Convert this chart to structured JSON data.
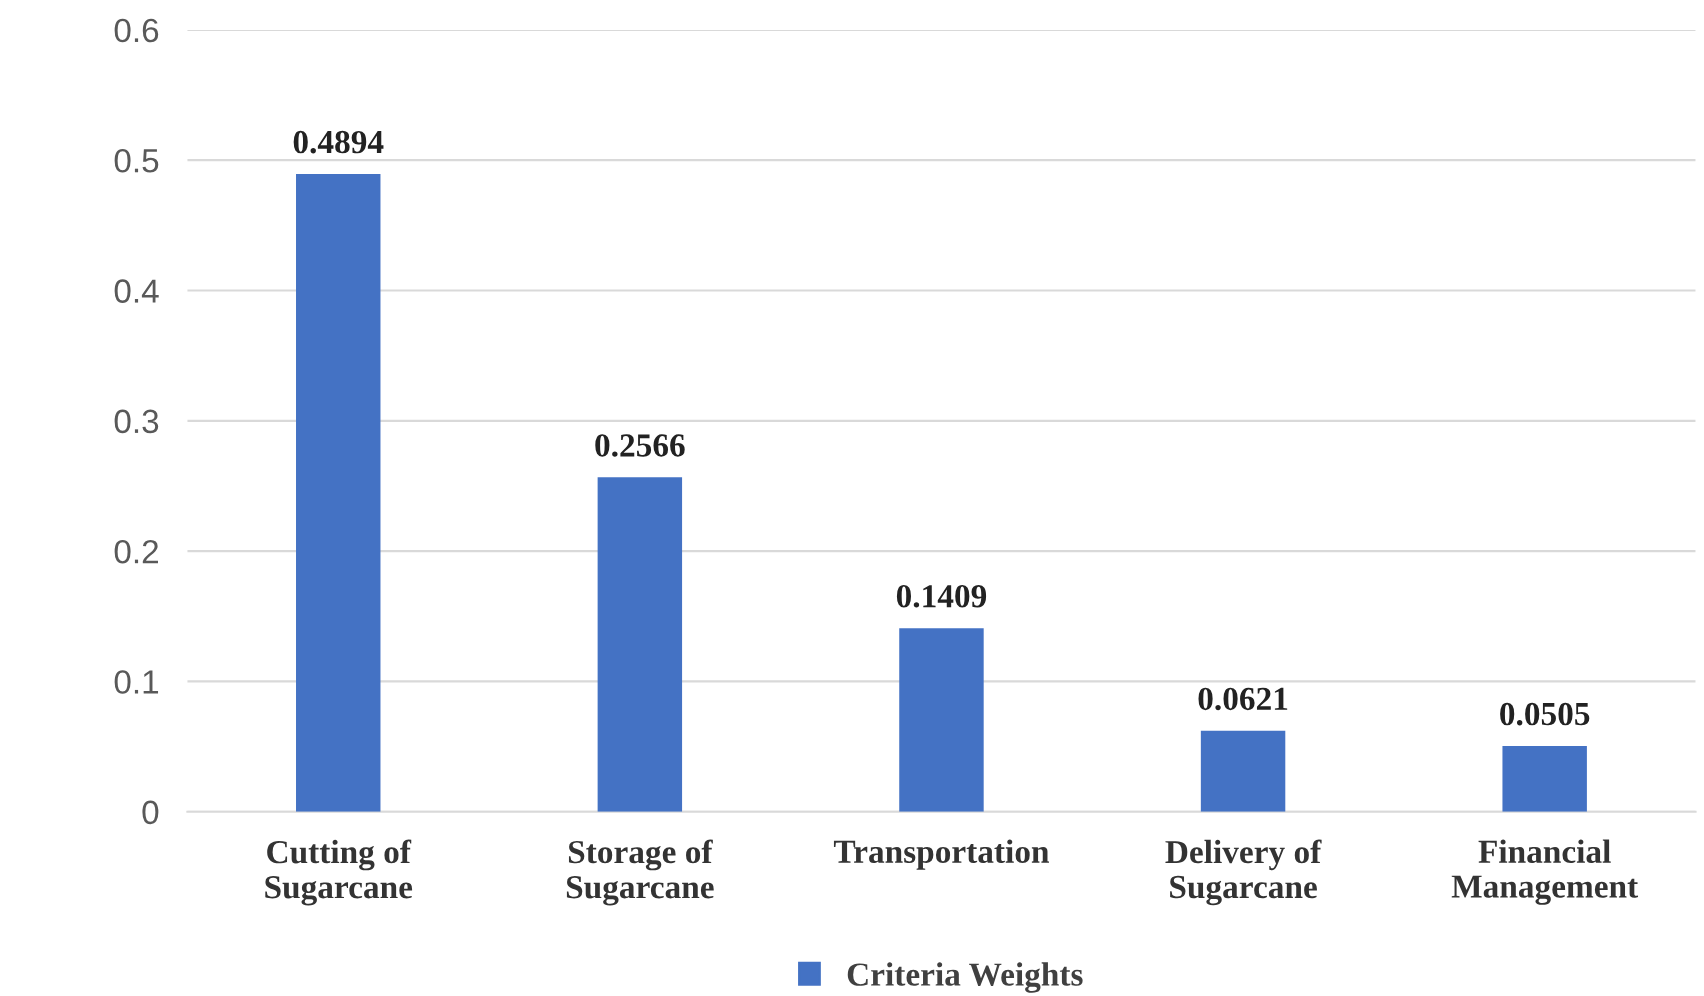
{
  "chart_data": {
    "type": "bar",
    "categories": [
      "Cutting of\nSugarcane",
      "Storage of\nSugarcane",
      "Transportation",
      "Delivery of\nSugarcane",
      "Financial\nManagement"
    ],
    "series": [
      {
        "name": "Criteria Weights",
        "color": "#4472c4",
        "values": [
          0.4894,
          0.2566,
          0.1409,
          0.0621,
          0.0505
        ]
      }
    ],
    "ylim": [
      0,
      0.6
    ],
    "yticks": [
      0,
      0.1,
      0.2,
      0.3,
      0.4,
      0.5,
      0.6
    ],
    "grid": "y",
    "legend": "bottom",
    "data_labels": true
  }
}
